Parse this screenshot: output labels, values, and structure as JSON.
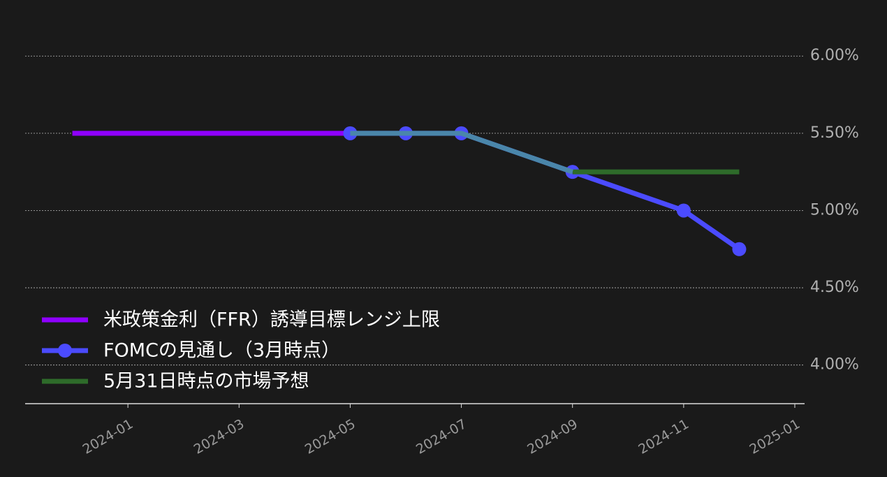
{
  "chart_data": {
    "type": "line",
    "series": [
      {
        "name": "米政策金利（FFR）誘導目標レンジ上限",
        "color": "#8f00ff",
        "x": [
          "2023-12",
          "2024-05"
        ],
        "values": [
          5.5,
          5.5
        ]
      },
      {
        "name": "FOMCの見通し（3月時点）",
        "color": "#4b4bff",
        "marker": true,
        "x": [
          "2024-05",
          "2024-06",
          "2024-07",
          "2024-09",
          "2024-11",
          "2024-12"
        ],
        "values": [
          5.5,
          5.5,
          5.5,
          5.25,
          5.0,
          4.75
        ]
      },
      {
        "name": "5月31日時点の市場予想",
        "color": "#2e6b2a",
        "x": [
          "2024-09",
          "2024-12"
        ],
        "values": [
          5.25,
          5.25
        ]
      },
      {
        "color": "#4a86aa",
        "x": [
          "2024-05",
          "2024-06",
          "2024-07",
          "2024-09"
        ],
        "values": [
          5.5,
          5.5,
          5.5,
          5.25
        ]
      }
    ],
    "xlim": [
      "2023-11",
      "2025-01"
    ],
    "xticks": [
      "2024-01",
      "2024-03",
      "2024-05",
      "2024-07",
      "2024-09",
      "2024-11",
      "2025-01"
    ],
    "ylim": [
      3.75,
      6.2
    ],
    "yticks": [
      {
        "value": 4.0,
        "label": "4.00%"
      },
      {
        "value": 4.5,
        "label": "4.50%"
      },
      {
        "value": 5.0,
        "label": "5.00%"
      },
      {
        "value": 5.5,
        "label": "5.50%"
      },
      {
        "value": 6.0,
        "label": "6.00%"
      }
    ],
    "grid": true,
    "legend": "lower left"
  }
}
